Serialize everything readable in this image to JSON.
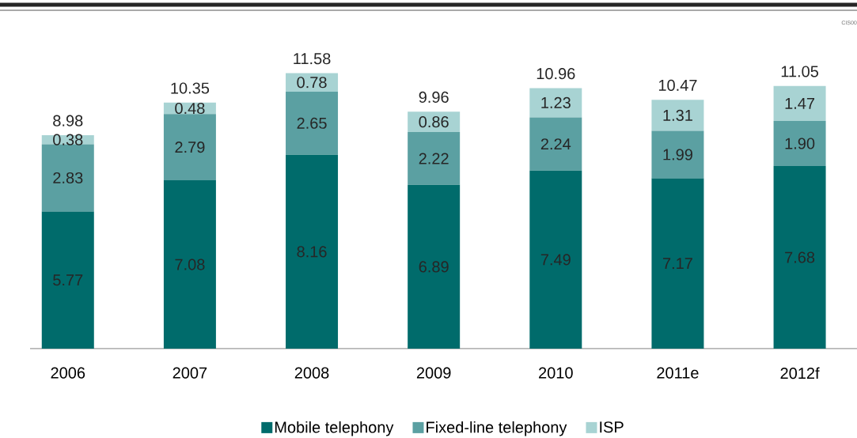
{
  "chart_data": {
    "type": "bar",
    "stacked": true,
    "categories": [
      "2006",
      "2007",
      "2008",
      "2009",
      "2010",
      "2011e",
      "2012f"
    ],
    "series": [
      {
        "name": "Mobile telephony",
        "color": "#006b6b",
        "values": [
          5.77,
          7.08,
          8.16,
          6.89,
          7.49,
          7.17,
          7.68
        ],
        "value_labels": [
          "5.77",
          "7.08",
          "8.16",
          "6.89",
          "7.49",
          "7.17",
          "7.68"
        ]
      },
      {
        "name": "Fixed-line telephony",
        "color": "#5ba0a2",
        "values": [
          2.83,
          2.79,
          2.65,
          2.22,
          2.24,
          1.99,
          1.9
        ],
        "value_labels": [
          "2.83",
          "2.79",
          "2.65",
          "2.22",
          "2.24",
          "1.99",
          "1.90"
        ]
      },
      {
        "name": "ISP",
        "color": "#a8d3d3",
        "values": [
          0.38,
          0.48,
          0.78,
          0.86,
          1.23,
          1.31,
          1.47
        ],
        "value_labels": [
          "0.38",
          "0.48",
          "0.78",
          "0.86",
          "1.23",
          "1.31",
          "1.47"
        ]
      }
    ],
    "totals": [
      "8.98",
      "10.35",
      "11.58",
      "9.96",
      "10.96",
      "10.47",
      "11.05"
    ],
    "tick_labels": "x",
    "legend": "bottom",
    "annotations": [
      "CIS00"
    ]
  }
}
